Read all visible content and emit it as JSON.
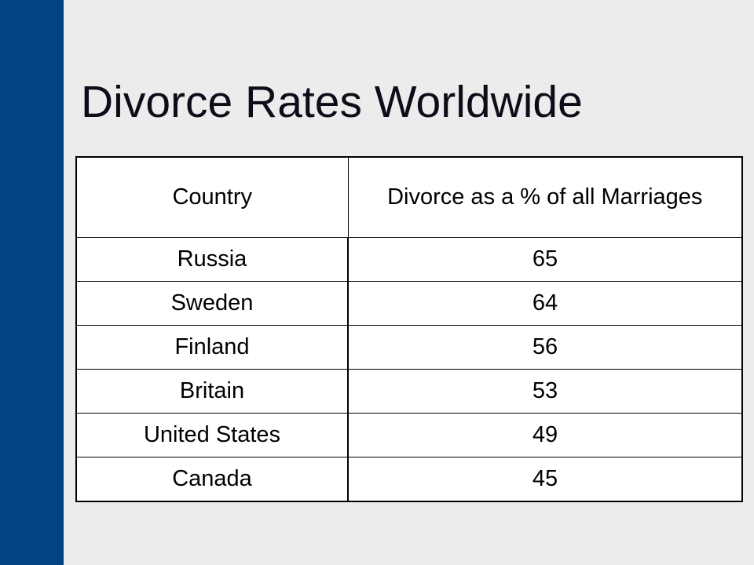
{
  "slide": {
    "title": "Divorce Rates Worldwide",
    "accent_color": "#004483",
    "background_color": "#ececec"
  },
  "table": {
    "headers": {
      "country": "Country",
      "rate": "Divorce as a % of all Marriages"
    },
    "rows": [
      {
        "country": "Russia",
        "rate": "65"
      },
      {
        "country": "Sweden",
        "rate": "64"
      },
      {
        "country": "Finland",
        "rate": "56"
      },
      {
        "country": "Britain",
        "rate": "53"
      },
      {
        "country": "United States",
        "rate": "49"
      },
      {
        "country": "Canada",
        "rate": "45"
      }
    ]
  }
}
